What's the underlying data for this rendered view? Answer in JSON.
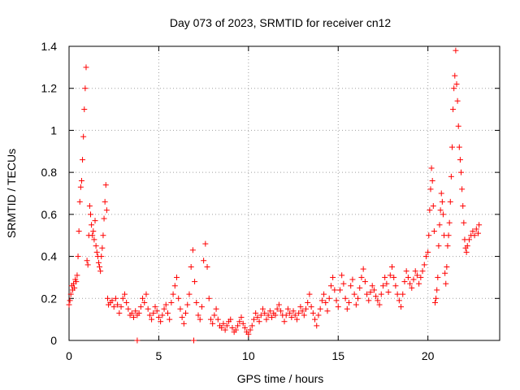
{
  "chart_data": {
    "type": "scatter",
    "title": "Day 073 of 2023, SRMTID for receiver cn12",
    "xlabel": "GPS time / hours",
    "ylabel": "SRMTID / TECUs",
    "xlim": [
      0,
      24
    ],
    "ylim": [
      0,
      1.4
    ],
    "xticks": [
      0,
      5,
      10,
      15,
      20
    ],
    "yticks": [
      0,
      0.2,
      0.4,
      0.6,
      0.8,
      1,
      1.2,
      1.4
    ],
    "xtick_labels": [
      "0",
      "5",
      "10",
      "15",
      "20"
    ],
    "ytick_labels": [
      "0",
      "0.2",
      "0.4",
      "0.6",
      "0.8",
      "1",
      "1.2",
      "1.4"
    ],
    "grid": true,
    "marker": "+",
    "color": "#ff0000",
    "series": [
      {
        "name": "SRMTID",
        "points": [
          [
            0.0,
            0.17
          ],
          [
            0.05,
            0.19
          ],
          [
            0.1,
            0.22
          ],
          [
            0.15,
            0.26
          ],
          [
            0.2,
            0.24
          ],
          [
            0.25,
            0.27
          ],
          [
            0.3,
            0.25
          ],
          [
            0.35,
            0.29
          ],
          [
            0.4,
            0.28
          ],
          [
            0.45,
            0.31
          ],
          [
            0.5,
            0.4
          ],
          [
            0.55,
            0.52
          ],
          [
            0.6,
            0.66
          ],
          [
            0.65,
            0.73
          ],
          [
            0.7,
            0.76
          ],
          [
            0.75,
            0.86
          ],
          [
            0.8,
            0.97
          ],
          [
            0.85,
            1.1
          ],
          [
            0.9,
            1.2
          ],
          [
            0.95,
            1.3
          ],
          [
            1.0,
            0.38
          ],
          [
            1.05,
            0.36
          ],
          [
            1.1,
            0.5
          ],
          [
            1.15,
            0.64
          ],
          [
            1.2,
            0.6
          ],
          [
            1.25,
            0.55
          ],
          [
            1.3,
            0.5
          ],
          [
            1.35,
            0.52
          ],
          [
            1.4,
            0.48
          ],
          [
            1.45,
            0.57
          ],
          [
            1.5,
            0.45
          ],
          [
            1.55,
            0.42
          ],
          [
            1.6,
            0.4
          ],
          [
            1.65,
            0.37
          ],
          [
            1.7,
            0.35
          ],
          [
            1.75,
            0.33
          ],
          [
            1.8,
            0.4
          ],
          [
            1.85,
            0.44
          ],
          [
            1.9,
            0.5
          ],
          [
            1.95,
            0.58
          ],
          [
            2.0,
            0.66
          ],
          [
            2.05,
            0.74
          ],
          [
            2.1,
            0.62
          ],
          [
            2.15,
            0.2
          ],
          [
            2.2,
            0.17
          ],
          [
            2.3,
            0.18
          ],
          [
            2.4,
            0.19
          ],
          [
            2.5,
            0.16
          ],
          [
            2.6,
            0.2
          ],
          [
            2.7,
            0.17
          ],
          [
            2.8,
            0.13
          ],
          [
            2.9,
            0.16
          ],
          [
            3.0,
            0.2
          ],
          [
            3.1,
            0.22
          ],
          [
            3.2,
            0.18
          ],
          [
            3.3,
            0.15
          ],
          [
            3.4,
            0.12
          ],
          [
            3.5,
            0.13
          ],
          [
            3.6,
            0.11
          ],
          [
            3.7,
            0.14
          ],
          [
            3.8,
            0.12
          ],
          [
            3.9,
            0.13
          ],
          [
            4.0,
            0.16
          ],
          [
            4.1,
            0.2
          ],
          [
            4.2,
            0.18
          ],
          [
            4.3,
            0.22
          ],
          [
            4.4,
            0.15
          ],
          [
            4.5,
            0.12
          ],
          [
            4.6,
            0.1
          ],
          [
            4.7,
            0.13
          ],
          [
            4.8,
            0.16
          ],
          [
            4.9,
            0.14
          ],
          [
            5.0,
            0.11
          ],
          [
            5.1,
            0.09
          ],
          [
            5.2,
            0.12
          ],
          [
            5.3,
            0.15
          ],
          [
            5.4,
            0.17
          ],
          [
            5.5,
            0.13
          ],
          [
            5.6,
            0.1
          ],
          [
            5.7,
            0.18
          ],
          [
            5.8,
            0.22
          ],
          [
            5.9,
            0.26
          ],
          [
            6.0,
            0.3
          ],
          [
            6.1,
            0.2
          ],
          [
            6.2,
            0.15
          ],
          [
            6.3,
            0.11
          ],
          [
            6.4,
            0.08
          ],
          [
            6.5,
            0.13
          ],
          [
            6.6,
            0.17
          ],
          [
            6.7,
            0.22
          ],
          [
            6.8,
            0.35
          ],
          [
            6.9,
            0.43
          ],
          [
            7.0,
            0.28
          ],
          [
            7.1,
            0.18
          ],
          [
            7.2,
            0.12
          ],
          [
            7.3,
            0.1
          ],
          [
            7.4,
            0.16
          ],
          [
            7.5,
            0.38
          ],
          [
            7.6,
            0.46
          ],
          [
            7.7,
            0.35
          ],
          [
            7.8,
            0.2
          ],
          [
            7.9,
            0.1
          ],
          [
            8.0,
            0.08
          ],
          [
            8.1,
            0.12
          ],
          [
            8.2,
            0.15
          ],
          [
            8.3,
            0.1
          ],
          [
            8.4,
            0.07
          ],
          [
            8.5,
            0.06
          ],
          [
            8.6,
            0.08
          ],
          [
            8.7,
            0.05
          ],
          [
            8.8,
            0.07
          ],
          [
            8.9,
            0.09
          ],
          [
            9.0,
            0.1
          ],
          [
            9.1,
            0.06
          ],
          [
            9.2,
            0.04
          ],
          [
            9.3,
            0.05
          ],
          [
            9.4,
            0.07
          ],
          [
            9.5,
            0.09
          ],
          [
            9.6,
            0.11
          ],
          [
            9.7,
            0.08
          ],
          [
            9.8,
            0.06
          ],
          [
            9.9,
            0.04
          ],
          [
            10.0,
            0.03
          ],
          [
            10.1,
            0.05
          ],
          [
            10.2,
            0.07
          ],
          [
            10.3,
            0.1
          ],
          [
            10.4,
            0.13
          ],
          [
            10.5,
            0.11
          ],
          [
            10.6,
            0.09
          ],
          [
            10.7,
            0.12
          ],
          [
            10.8,
            0.15
          ],
          [
            10.9,
            0.13
          ],
          [
            11.0,
            0.1
          ],
          [
            11.1,
            0.12
          ],
          [
            11.2,
            0.14
          ],
          [
            11.3,
            0.11
          ],
          [
            11.4,
            0.13
          ],
          [
            11.5,
            0.12
          ],
          [
            11.6,
            0.15
          ],
          [
            11.7,
            0.17
          ],
          [
            11.8,
            0.14
          ],
          [
            11.9,
            0.12
          ],
          [
            12.0,
            0.09
          ],
          [
            12.1,
            0.12
          ],
          [
            12.2,
            0.15
          ],
          [
            12.3,
            0.13
          ],
          [
            12.4,
            0.11
          ],
          [
            12.5,
            0.14
          ],
          [
            12.6,
            0.12
          ],
          [
            12.7,
            0.1
          ],
          [
            12.8,
            0.13
          ],
          [
            12.9,
            0.16
          ],
          [
            13.0,
            0.14
          ],
          [
            13.1,
            0.12
          ],
          [
            13.2,
            0.15
          ],
          [
            13.3,
            0.18
          ],
          [
            13.4,
            0.22
          ],
          [
            13.5,
            0.16
          ],
          [
            13.6,
            0.13
          ],
          [
            13.7,
            0.1
          ],
          [
            13.8,
            0.07
          ],
          [
            13.9,
            0.12
          ],
          [
            14.0,
            0.15
          ],
          [
            14.1,
            0.19
          ],
          [
            14.2,
            0.22
          ],
          [
            14.3,
            0.18
          ],
          [
            14.4,
            0.14
          ],
          [
            14.5,
            0.2
          ],
          [
            14.6,
            0.26
          ],
          [
            14.7,
            0.3
          ],
          [
            14.8,
            0.24
          ],
          [
            14.9,
            0.19
          ],
          [
            15.0,
            0.16
          ],
          [
            15.1,
            0.24
          ],
          [
            15.2,
            0.31
          ],
          [
            15.3,
            0.27
          ],
          [
            15.4,
            0.2
          ],
          [
            15.5,
            0.15
          ],
          [
            15.6,
            0.18
          ],
          [
            15.7,
            0.26
          ],
          [
            15.8,
            0.29
          ],
          [
            15.9,
            0.22
          ],
          [
            16.0,
            0.17
          ],
          [
            16.1,
            0.2
          ],
          [
            16.2,
            0.25
          ],
          [
            16.3,
            0.3
          ],
          [
            16.4,
            0.34
          ],
          [
            16.5,
            0.28
          ],
          [
            16.6,
            0.22
          ],
          [
            16.7,
            0.19
          ],
          [
            16.8,
            0.23
          ],
          [
            16.9,
            0.26
          ],
          [
            17.0,
            0.24
          ],
          [
            17.1,
            0.21
          ],
          [
            17.2,
            0.19
          ],
          [
            17.3,
            0.17
          ],
          [
            17.4,
            0.22
          ],
          [
            17.5,
            0.26
          ],
          [
            17.6,
            0.3
          ],
          [
            17.7,
            0.27
          ],
          [
            17.8,
            0.23
          ],
          [
            17.9,
            0.31
          ],
          [
            18.0,
            0.35
          ],
          [
            18.1,
            0.3
          ],
          [
            18.2,
            0.26
          ],
          [
            18.3,
            0.22
          ],
          [
            18.4,
            0.19
          ],
          [
            18.5,
            0.16
          ],
          [
            18.6,
            0.22
          ],
          [
            18.7,
            0.28
          ],
          [
            18.8,
            0.33
          ],
          [
            18.9,
            0.3
          ],
          [
            19.0,
            0.27
          ],
          [
            19.1,
            0.25
          ],
          [
            19.2,
            0.29
          ],
          [
            19.3,
            0.33
          ],
          [
            19.4,
            0.31
          ],
          [
            19.5,
            0.27
          ],
          [
            19.6,
            0.3
          ],
          [
            19.7,
            0.33
          ],
          [
            19.8,
            0.36
          ],
          [
            19.9,
            0.4
          ],
          [
            20.0,
            0.42
          ],
          [
            20.05,
            0.5
          ],
          [
            20.1,
            0.62
          ],
          [
            20.15,
            0.72
          ],
          [
            20.2,
            0.82
          ],
          [
            20.25,
            0.76
          ],
          [
            20.3,
            0.64
          ],
          [
            20.35,
            0.52
          ],
          [
            20.4,
            0.18
          ],
          [
            20.45,
            0.2
          ],
          [
            20.5,
            0.24
          ],
          [
            20.55,
            0.3
          ],
          [
            20.6,
            0.45
          ],
          [
            20.65,
            0.55
          ],
          [
            20.7,
            0.62
          ],
          [
            20.75,
            0.7
          ],
          [
            20.8,
            0.66
          ],
          [
            20.85,
            0.6
          ],
          [
            20.9,
            0.5
          ],
          [
            20.95,
            0.32
          ],
          [
            21.0,
            0.27
          ],
          [
            21.05,
            0.35
          ],
          [
            21.1,
            0.45
          ],
          [
            21.15,
            0.5
          ],
          [
            21.2,
            0.56
          ],
          [
            21.25,
            0.66
          ],
          [
            21.3,
            0.78
          ],
          [
            21.35,
            0.92
          ],
          [
            21.4,
            1.1
          ],
          [
            21.45,
            1.2
          ],
          [
            21.5,
            1.26
          ],
          [
            21.55,
            1.38
          ],
          [
            21.6,
            1.22
          ],
          [
            21.65,
            1.14
          ],
          [
            21.7,
            1.02
          ],
          [
            21.75,
            0.92
          ],
          [
            21.8,
            0.86
          ],
          [
            21.85,
            0.8
          ],
          [
            21.9,
            0.72
          ],
          [
            21.95,
            0.64
          ],
          [
            22.0,
            0.56
          ],
          [
            22.05,
            0.48
          ],
          [
            22.1,
            0.44
          ],
          [
            22.15,
            0.42
          ],
          [
            22.2,
            0.45
          ],
          [
            22.3,
            0.48
          ],
          [
            22.4,
            0.5
          ],
          [
            22.5,
            0.52
          ],
          [
            22.6,
            0.5
          ],
          [
            22.7,
            0.53
          ],
          [
            22.8,
            0.51
          ],
          [
            22.85,
            0.55
          ]
        ]
      }
    ],
    "outliers": [
      [
        3.8,
        0.0
      ],
      [
        6.95,
        0.0
      ]
    ]
  }
}
